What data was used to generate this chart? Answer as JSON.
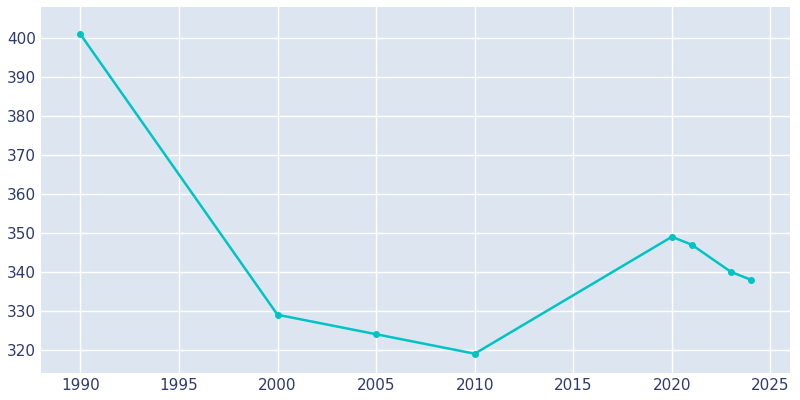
{
  "years": [
    1990,
    2000,
    2005,
    2010,
    2020,
    2021,
    2023,
    2024
  ],
  "population": [
    401,
    329,
    324,
    319,
    349,
    347,
    340,
    338
  ],
  "line_color": "#00C4C4",
  "marker_color": "#00C4C4",
  "fig_bg_color": "#FFFFFF",
  "plot_bg_color": "#DDE6F0",
  "grid_color": "#FFFFFF",
  "xlim": [
    1988,
    2026
  ],
  "ylim": [
    314,
    408
  ],
  "xticks": [
    1990,
    1995,
    2000,
    2005,
    2010,
    2015,
    2020,
    2025
  ],
  "yticks": [
    320,
    330,
    340,
    350,
    360,
    370,
    380,
    390,
    400
  ],
  "tick_label_color": "#2E3A6E",
  "tick_fontsize": 11,
  "linewidth": 1.8,
  "marker_size": 4
}
